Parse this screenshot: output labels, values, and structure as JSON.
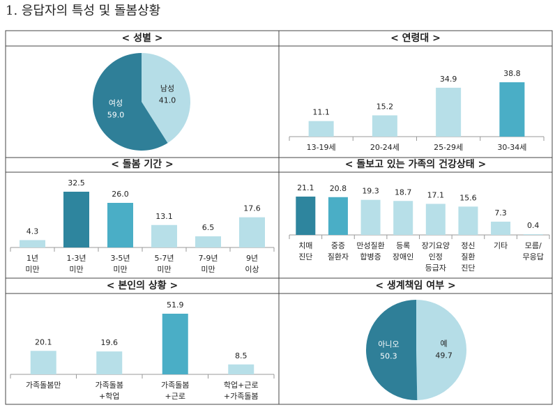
{
  "page_title": "1. 응답자의 특성 및 돌봄상황",
  "chart_data": [
    {
      "type": "pie",
      "title": "< 성별 >",
      "categories": [
        "남성",
        "여성"
      ],
      "values": [
        41,
        59
      ],
      "value_labels": [
        "41.0",
        "59.0"
      ],
      "colors": [
        "#b5dde7",
        "#2f7f98"
      ]
    },
    {
      "type": "bar",
      "title": "< 연령대 >",
      "categories": [
        [
          "13-19세"
        ],
        [
          "20-24세"
        ],
        [
          "25-29세"
        ],
        [
          "30-34세"
        ]
      ],
      "values": [
        11.1,
        15.2,
        34.9,
        38.8
      ],
      "value_labels": [
        "11.1",
        "15.2",
        "34.9",
        "38.8"
      ],
      "colors": [
        "#b7dfe8",
        "#b7dfe8",
        "#b7dfe8",
        "#4aaec6"
      ]
    },
    {
      "type": "bar",
      "title": "< 돌봄 기간 >",
      "categories": [
        [
          "1년",
          "미만"
        ],
        [
          "1-3년",
          "미만"
        ],
        [
          "3-5년",
          "미만"
        ],
        [
          "5-7년",
          "미만"
        ],
        [
          "7-9년",
          "미만"
        ],
        [
          "9년",
          "이상"
        ]
      ],
      "values": [
        4.3,
        32.5,
        26,
        13.1,
        6.5,
        17.6
      ],
      "value_labels": [
        "4.3",
        "32.5",
        "26.0",
        "13.1",
        "6.5",
        "17.6"
      ],
      "colors": [
        "#b7dfe8",
        "#2e859e",
        "#4aaec6",
        "#b7dfe8",
        "#b7dfe8",
        "#b7dfe8"
      ]
    },
    {
      "type": "bar",
      "title": "< 돌보고 있는 가족의 건강상태 >",
      "categories": [
        [
          "치매",
          "진단"
        ],
        [
          "중증",
          "질환자"
        ],
        [
          "만성질환",
          "합병증"
        ],
        [
          "등록",
          "장애인"
        ],
        [
          "장기요양",
          "인정",
          "등급자"
        ],
        [
          "정신",
          "질환",
          "진단"
        ],
        [
          "기타"
        ],
        [
          "모름/",
          "무응답"
        ]
      ],
      "values": [
        21.1,
        20.8,
        19.3,
        18.7,
        17.1,
        15.6,
        7.3,
        0.4
      ],
      "value_labels": [
        "21.1",
        "20.8",
        "19.3",
        "18.7",
        "17.1",
        "15.6",
        "7.3",
        "0.4"
      ],
      "colors": [
        "#2e859e",
        "#4aaec6",
        "#b7dfe8",
        "#b7dfe8",
        "#b7dfe8",
        "#b7dfe8",
        "#b7dfe8",
        "#b7dfe8"
      ]
    },
    {
      "type": "bar",
      "title": "< 본인의 상황 >",
      "categories": [
        [
          "가족돌봄만"
        ],
        [
          "가족돌봄",
          "+학업"
        ],
        [
          "가족돌봄",
          "+근로"
        ],
        [
          "학업+근로",
          "+가족돌봄"
        ]
      ],
      "values": [
        20.1,
        19.6,
        51.9,
        8.5
      ],
      "value_labels": [
        "20.1",
        "19.6",
        "51.9",
        "8.5"
      ],
      "colors": [
        "#b7dfe8",
        "#b7dfe8",
        "#4aaec6",
        "#b7dfe8"
      ]
    },
    {
      "type": "pie",
      "title": "< 생계책임 여부 >",
      "categories": [
        "예",
        "아니오"
      ],
      "values": [
        49.7,
        50.3
      ],
      "value_labels": [
        "49.7",
        "50.3"
      ],
      "colors": [
        "#b5dde7",
        "#2f7f98"
      ]
    }
  ]
}
